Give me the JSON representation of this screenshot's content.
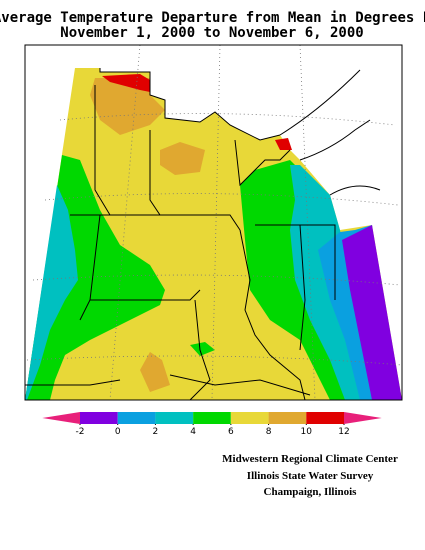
{
  "header": {
    "title_line1": "Average Temperature Departure from Mean in Degrees F",
    "title_line2": "November 1, 2000 to November 6, 2000"
  },
  "legend": {
    "ticks": [
      -2,
      0,
      2,
      4,
      6,
      8,
      10,
      12
    ],
    "colors": [
      "#e8207a",
      "#8000e0",
      "#0aa0e0",
      "#00c0c0",
      "#00d800",
      "#e8d838",
      "#e0a830",
      "#e00000",
      "#e8207a"
    ]
  },
  "credits": [
    "Midwestern Regional Climate Center",
    "Illinois State Water Survey",
    "Champaign, Illinois"
  ]
}
